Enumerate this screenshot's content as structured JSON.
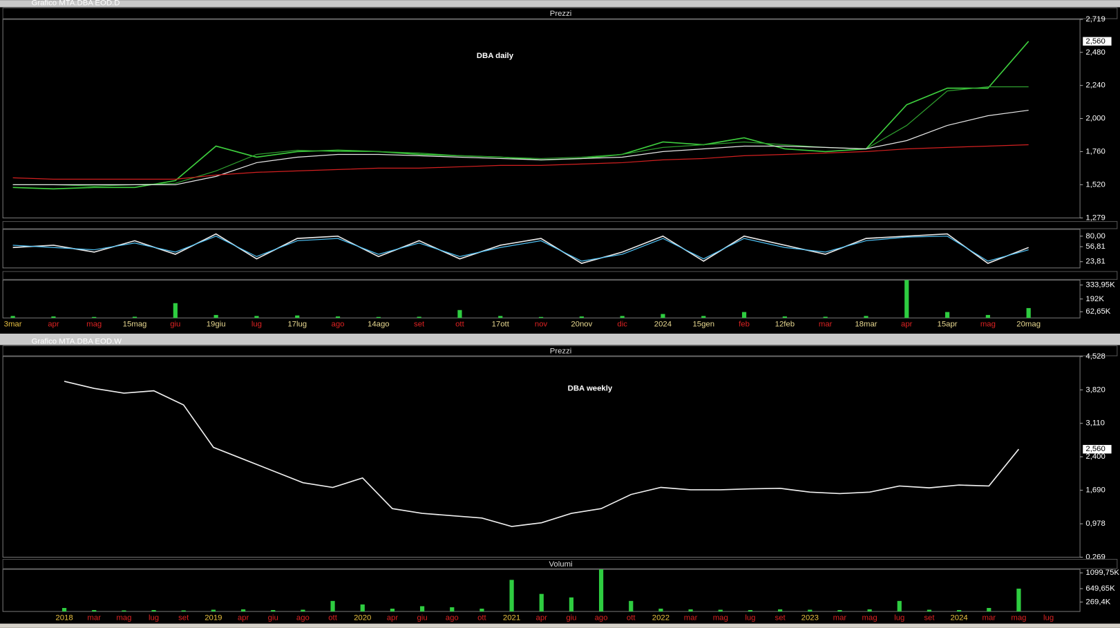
{
  "chart_data": [
    {
      "type": "line",
      "window_title": "Grafico MTA.DBA EOD.D",
      "title": "Prezzi",
      "annotation": "DBA daily",
      "ylim": [
        1.279,
        2.719
      ],
      "yticks": [
        {
          "value": 2.719,
          "label": "2,719"
        },
        {
          "value": 2.48,
          "label": "2,480"
        },
        {
          "value": 2.24,
          "label": "2,240"
        },
        {
          "value": 2.0,
          "label": "2,000"
        },
        {
          "value": 1.76,
          "label": "1,760"
        },
        {
          "value": 1.52,
          "label": "1,520"
        },
        {
          "value": 1.279,
          "label": "1,279"
        }
      ],
      "last_price": {
        "value": 2.56,
        "label": "2,560"
      },
      "series": [
        {
          "color": "#3ecf3e",
          "values": [
            1.5,
            1.49,
            1.5,
            1.5,
            1.55,
            1.8,
            1.72,
            1.76,
            1.77,
            1.76,
            1.74,
            1.73,
            1.72,
            1.7,
            1.71,
            1.74,
            1.83,
            1.81,
            1.86,
            1.78,
            1.76,
            1.78,
            2.1,
            2.22,
            2.22,
            2.56
          ]
        },
        {
          "color": "#2e9e2e",
          "values": [
            1.52,
            1.52,
            1.51,
            1.52,
            1.53,
            1.62,
            1.74,
            1.77,
            1.76,
            1.76,
            1.75,
            1.73,
            1.72,
            1.71,
            1.72,
            1.74,
            1.79,
            1.81,
            1.83,
            1.81,
            1.79,
            1.78,
            1.95,
            2.2,
            2.23,
            2.23
          ]
        },
        {
          "color": "#e8e8e8",
          "values": [
            1.52,
            1.52,
            1.52,
            1.52,
            1.52,
            1.58,
            1.68,
            1.72,
            1.74,
            1.74,
            1.73,
            1.72,
            1.71,
            1.7,
            1.71,
            1.72,
            1.76,
            1.78,
            1.8,
            1.8,
            1.79,
            1.78,
            1.84,
            1.95,
            2.02,
            2.06
          ]
        },
        {
          "color": "#d42020",
          "values": [
            1.57,
            1.56,
            1.56,
            1.56,
            1.56,
            1.59,
            1.61,
            1.62,
            1.63,
            1.64,
            1.64,
            1.65,
            1.66,
            1.66,
            1.67,
            1.68,
            1.7,
            1.71,
            1.73,
            1.74,
            1.75,
            1.76,
            1.78,
            1.79,
            1.8,
            1.81
          ]
        }
      ]
    },
    {
      "type": "line",
      "ylim": [
        10,
        95
      ],
      "yticks": [
        {
          "value": 80,
          "label": "80,00"
        },
        {
          "value": 56.81,
          "label": "56,81"
        },
        {
          "value": 23.81,
          "label": "23,81"
        }
      ],
      "series": [
        {
          "color": "#e8e8e8",
          "values": [
            55,
            60,
            45,
            70,
            40,
            85,
            30,
            75,
            80,
            35,
            70,
            30,
            60,
            75,
            20,
            45,
            80,
            25,
            80,
            60,
            40,
            75,
            80,
            85,
            20,
            55
          ]
        },
        {
          "color": "#4fc3f7",
          "values": [
            60,
            55,
            50,
            65,
            45,
            80,
            35,
            70,
            75,
            40,
            65,
            35,
            55,
            70,
            25,
            40,
            75,
            30,
            75,
            55,
            45,
            70,
            78,
            80,
            25,
            50
          ]
        }
      ]
    },
    {
      "type": "bar",
      "ylim": [
        0,
        384000
      ],
      "yticks": [
        {
          "value": 333950,
          "label": "333,95K"
        },
        {
          "value": 192000,
          "label": "192K"
        },
        {
          "value": 62650,
          "label": "62,65K"
        }
      ],
      "categories": [
        "3mar",
        "apr",
        "mag",
        "15mag",
        "giu",
        "19giu",
        "lug",
        "17lug",
        "ago",
        "14ago",
        "set",
        "ott",
        "17ott",
        "nov",
        "20nov",
        "dic",
        "2024",
        "15gen",
        "feb",
        "12feb",
        "mar",
        "18mar",
        "apr",
        "15apr",
        "mag",
        "20mag"
      ],
      "xtick_colors": [
        "#e8c040",
        "#dd2222",
        "#dd2222",
        "#e8d890",
        "#dd2222",
        "#e8d890",
        "#dd2222",
        "#e8d890",
        "#dd2222",
        "#e8d890",
        "#dd2222",
        "#dd2222",
        "#e8d890",
        "#dd2222",
        "#e8d890",
        "#dd2222",
        "#e8d890",
        "#e8d890",
        "#dd2222",
        "#e8d890",
        "#dd2222",
        "#e8d890",
        "#dd2222",
        "#e8d890",
        "#dd2222",
        "#e8d890"
      ],
      "series": [
        {
          "color": "#2ecc40",
          "values": [
            20000,
            15000,
            10000,
            12000,
            150000,
            30000,
            20000,
            25000,
            15000,
            10000,
            12000,
            80000,
            20000,
            10000,
            15000,
            20000,
            40000,
            20000,
            60000,
            15000,
            12000,
            20000,
            384000,
            60000,
            30000,
            100000
          ]
        }
      ]
    },
    {
      "type": "line",
      "window_title": "Grafico MTA.DBA EOD.W",
      "title": "Prezzi",
      "annotation": "DBA weekly",
      "ylim": [
        0.269,
        4.528
      ],
      "yticks": [
        {
          "value": 4.528,
          "label": "4,528"
        },
        {
          "value": 3.82,
          "label": "3,820"
        },
        {
          "value": 3.11,
          "label": "3,110"
        },
        {
          "value": 2.4,
          "label": "2,400"
        },
        {
          "value": 1.69,
          "label": "1,690"
        },
        {
          "value": 0.978,
          "label": "0,978"
        },
        {
          "value": 0.269,
          "label": "0,269"
        }
      ],
      "last_price": {
        "value": 2.56,
        "label": "2,560"
      },
      "series": [
        {
          "color": "#f0f0f0",
          "values": [
            4.0,
            3.85,
            3.75,
            3.8,
            3.5,
            2.6,
            2.35,
            2.1,
            1.85,
            1.75,
            1.95,
            1.3,
            1.2,
            1.15,
            1.1,
            0.92,
            1.0,
            1.2,
            1.3,
            1.6,
            1.75,
            1.7,
            1.7,
            1.72,
            1.73,
            1.65,
            1.62,
            1.65,
            1.78,
            1.74,
            1.8,
            1.78,
            2.56,
            null
          ]
        }
      ]
    },
    {
      "type": "bar",
      "title": "Volumi",
      "ylim": [
        0,
        1200000
      ],
      "yticks": [
        {
          "value": 1099750,
          "label": "1099,75K"
        },
        {
          "value": 649650,
          "label": "649,65K"
        },
        {
          "value": 269400,
          "label": "269,4K"
        }
      ],
      "categories": [
        "2018",
        "mar",
        "mag",
        "lug",
        "set",
        "2019",
        "apr",
        "giu",
        "ago",
        "ott",
        "2020",
        "apr",
        "giu",
        "ago",
        "ott",
        "2021",
        "apr",
        "giu",
        "ago",
        "ott",
        "2022",
        "mar",
        "mag",
        "lug",
        "set",
        "2023",
        "mar",
        "mag",
        "lug",
        "set",
        "2024",
        "mar",
        "mag",
        "lug"
      ],
      "xtick_colors": [
        "#e8c040",
        "#dd2222",
        "#dd2222",
        "#dd2222",
        "#dd2222",
        "#e8c040",
        "#dd2222",
        "#dd2222",
        "#dd2222",
        "#dd2222",
        "#e8c040",
        "#dd2222",
        "#dd2222",
        "#dd2222",
        "#dd2222",
        "#e8c040",
        "#dd2222",
        "#dd2222",
        "#dd2222",
        "#dd2222",
        "#e8c040",
        "#dd2222",
        "#dd2222",
        "#dd2222",
        "#dd2222",
        "#e8c040",
        "#dd2222",
        "#dd2222",
        "#dd2222",
        "#dd2222",
        "#e8c040",
        "#dd2222",
        "#dd2222",
        "#dd2222"
      ],
      "series": [
        {
          "color": "#2ecc40",
          "values": [
            100000,
            40000,
            30000,
            40000,
            30000,
            50000,
            60000,
            40000,
            50000,
            300000,
            200000,
            80000,
            150000,
            120000,
            80000,
            900000,
            500000,
            400000,
            1200000,
            300000,
            80000,
            60000,
            50000,
            40000,
            60000,
            50000,
            40000,
            60000,
            300000,
            50000,
            40000,
            100000,
            650000,
            null
          ]
        }
      ]
    }
  ]
}
